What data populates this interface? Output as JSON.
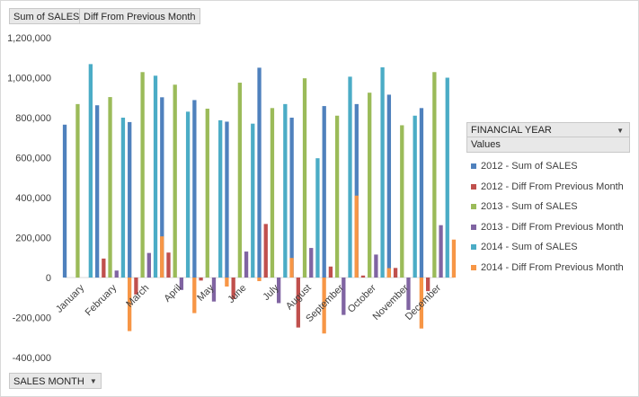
{
  "fields": {
    "value_field_1": "Sum of SALES",
    "value_field_2": "Diff From Previous Month",
    "legend_field": "FINANCIAL YEAR",
    "legend_values": "Values",
    "axis_field": "SALES MONTH"
  },
  "icons": {
    "dropdown": "chevron-down-icon"
  },
  "chart_data": {
    "type": "bar",
    "categories": [
      "January",
      "February",
      "March",
      "April",
      "May",
      "June",
      "July",
      "August",
      "September",
      "October",
      "November",
      "December"
    ],
    "ylim": [
      -400000,
      1200000
    ],
    "yticks": [
      -400000,
      -200000,
      0,
      200000,
      400000,
      600000,
      800000,
      1000000,
      1200000
    ],
    "ytick_labels": [
      "-400,000",
      "-200,000",
      "0",
      "200,000",
      "400,000",
      "600,000",
      "800,000",
      "1,000,000",
      "1,200,000"
    ],
    "grid": false,
    "legend_position": "right",
    "series": [
      {
        "name": "2012 - Sum of SALES",
        "color": "#4f81bd",
        "values": [
          765000,
          862000,
          778000,
          902000,
          888000,
          780000,
          1050000,
          800000,
          858000,
          868000,
          915000,
          848000
        ]
      },
      {
        "name": "2012 - Diff From Previous Month",
        "color": "#c0504d",
        "values": [
          0,
          95000,
          -85000,
          125000,
          -15000,
          -108000,
          268000,
          -250000,
          55000,
          10000,
          48000,
          -68000
        ]
      },
      {
        "name": "2013 - Sum of SALES",
        "color": "#9bbb59",
        "values": [
          868000,
          903000,
          1028000,
          965000,
          845000,
          975000,
          848000,
          997000,
          810000,
          925000,
          762000,
          1028000
        ]
      },
      {
        "name": "2013 - Diff From Previous Month",
        "color": "#8064a2",
        "values": [
          0,
          35000,
          123000,
          -62000,
          -120000,
          130000,
          -128000,
          148000,
          -187000,
          115000,
          -162000,
          262000
        ]
      },
      {
        "name": "2014 - Sum of SALES",
        "color": "#4bacc6",
        "values": [
          1068000,
          800000,
          1010000,
          830000,
          787000,
          770000,
          868000,
          597000,
          1005000,
          1052000,
          810000,
          1000000
        ]
      },
      {
        "name": "2014 - Diff From Previous Month",
        "color": "#f79646",
        "values": [
          0,
          -268000,
          206000,
          -178000,
          -45000,
          -18000,
          98000,
          -280000,
          410000,
          47000,
          -255000,
          190000
        ]
      }
    ]
  }
}
